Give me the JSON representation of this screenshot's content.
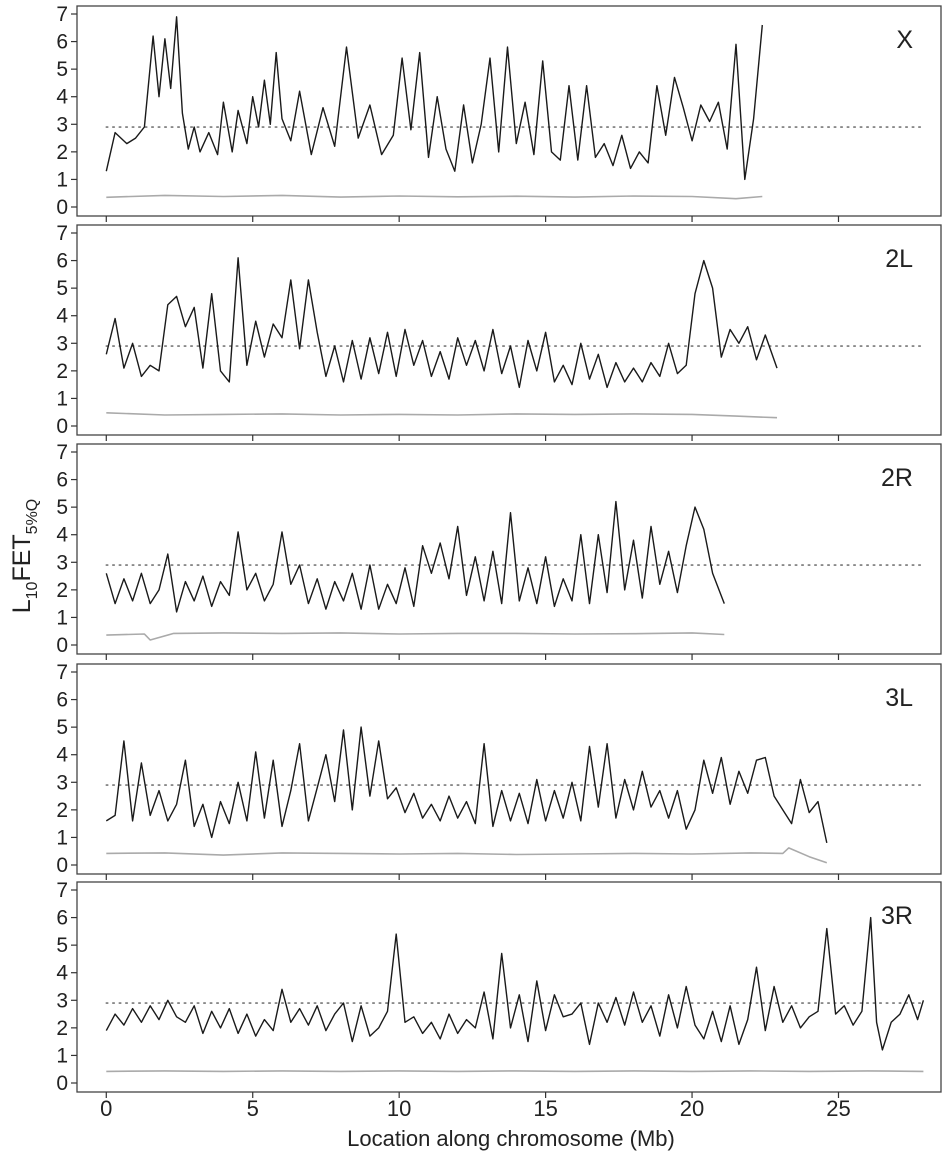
{
  "figure": {
    "ylabel_main": "L",
    "ylabel_sub1": "10",
    "ylabel_mid": "FET",
    "ylabel_sub2": "5%Q",
    "xlabel": "Location along chromosome (Mb)",
    "x_ticks": [
      "0",
      "5",
      "10",
      "15",
      "20",
      "25"
    ],
    "y_ticks": [
      "0",
      "1",
      "2",
      "3",
      "4",
      "5",
      "6",
      "7"
    ]
  },
  "colors": {
    "observed_line": "#1a1a1a",
    "null_line": "#aaaaaa",
    "threshold_line": "#777777",
    "panel_border": "#444444"
  },
  "chart_data": [
    {
      "type": "line",
      "panel": "X",
      "xlim": [
        -1,
        28.5
      ],
      "ylim": [
        0,
        7
      ],
      "threshold": 2.9,
      "x_max": 22.4,
      "series": [
        {
          "role": "observed",
          "x": [
            0.0,
            0.3,
            0.7,
            1.0,
            1.3,
            1.6,
            1.8,
            2.0,
            2.2,
            2.4,
            2.6,
            2.8,
            3.0,
            3.2,
            3.5,
            3.8,
            4.0,
            4.3,
            4.5,
            4.8,
            5.0,
            5.2,
            5.4,
            5.6,
            5.8,
            6.0,
            6.3,
            6.6,
            7.0,
            7.4,
            7.8,
            8.2,
            8.6,
            9.0,
            9.4,
            9.8,
            10.1,
            10.4,
            10.7,
            11.0,
            11.3,
            11.6,
            11.9,
            12.2,
            12.5,
            12.8,
            13.1,
            13.4,
            13.7,
            14.0,
            14.3,
            14.6,
            14.9,
            15.2,
            15.5,
            15.8,
            16.1,
            16.4,
            16.7,
            17.0,
            17.3,
            17.6,
            17.9,
            18.2,
            18.5,
            18.8,
            19.1,
            19.4,
            19.7,
            20.0,
            20.3,
            20.6,
            20.9,
            21.2,
            21.5,
            21.8,
            22.1,
            22.4
          ],
          "values": [
            1.3,
            2.7,
            2.3,
            2.5,
            2.9,
            6.2,
            4.0,
            6.1,
            4.3,
            6.9,
            3.4,
            2.1,
            2.9,
            2.0,
            2.7,
            1.9,
            3.8,
            2.0,
            3.5,
            2.3,
            4.0,
            2.9,
            4.6,
            3.0,
            5.6,
            3.2,
            2.4,
            4.2,
            1.9,
            3.6,
            2.2,
            5.8,
            2.5,
            3.7,
            1.9,
            2.6,
            5.4,
            2.8,
            5.6,
            1.8,
            4.0,
            2.1,
            1.3,
            3.7,
            1.6,
            3.0,
            5.4,
            2.0,
            5.8,
            2.3,
            3.8,
            1.9,
            5.3,
            2.0,
            1.7,
            4.4,
            1.7,
            4.4,
            1.8,
            2.3,
            1.5,
            2.6,
            1.4,
            2.0,
            1.6,
            4.4,
            2.6,
            4.7,
            3.6,
            2.4,
            3.7,
            3.1,
            3.8,
            2.1,
            5.9,
            1.0,
            3.2,
            6.6
          ]
        },
        {
          "role": "null",
          "x": [
            0.0,
            2.0,
            4.0,
            6.0,
            8.0,
            10.0,
            12.0,
            14.0,
            16.0,
            18.0,
            20.0,
            21.5,
            22.4
          ],
          "values": [
            0.35,
            0.42,
            0.38,
            0.42,
            0.36,
            0.4,
            0.37,
            0.39,
            0.36,
            0.4,
            0.38,
            0.3,
            0.38
          ]
        }
      ]
    },
    {
      "type": "line",
      "panel": "2L",
      "xlim": [
        -1,
        28.5
      ],
      "ylim": [
        0,
        7
      ],
      "threshold": 2.9,
      "x_max": 22.9,
      "series": [
        {
          "role": "observed",
          "x": [
            0.0,
            0.3,
            0.6,
            0.9,
            1.2,
            1.5,
            1.8,
            2.1,
            2.4,
            2.7,
            3.0,
            3.3,
            3.6,
            3.9,
            4.2,
            4.5,
            4.8,
            5.1,
            5.4,
            5.7,
            6.0,
            6.3,
            6.6,
            6.9,
            7.2,
            7.5,
            7.8,
            8.1,
            8.4,
            8.7,
            9.0,
            9.3,
            9.6,
            9.9,
            10.2,
            10.5,
            10.8,
            11.1,
            11.4,
            11.7,
            12.0,
            12.3,
            12.6,
            12.9,
            13.2,
            13.5,
            13.8,
            14.1,
            14.4,
            14.7,
            15.0,
            15.3,
            15.6,
            15.9,
            16.2,
            16.5,
            16.8,
            17.1,
            17.4,
            17.7,
            18.0,
            18.3,
            18.6,
            18.9,
            19.2,
            19.5,
            19.8,
            20.1,
            20.4,
            20.7,
            21.0,
            21.3,
            21.6,
            21.9,
            22.2,
            22.5,
            22.9
          ],
          "values": [
            2.6,
            3.9,
            2.1,
            3.0,
            1.8,
            2.2,
            2.0,
            4.4,
            4.7,
            3.6,
            4.3,
            2.1,
            4.8,
            2.0,
            1.6,
            6.1,
            2.2,
            3.8,
            2.5,
            3.7,
            3.2,
            5.3,
            2.8,
            5.3,
            3.4,
            1.8,
            2.9,
            1.6,
            3.1,
            1.7,
            3.2,
            1.9,
            3.4,
            1.8,
            3.5,
            2.2,
            3.1,
            1.8,
            2.7,
            1.7,
            3.2,
            2.2,
            3.1,
            2.0,
            3.5,
            1.9,
            2.9,
            1.4,
            3.1,
            2.0,
            3.4,
            1.6,
            2.2,
            1.5,
            3.0,
            1.7,
            2.6,
            1.4,
            2.3,
            1.6,
            2.1,
            1.6,
            2.3,
            1.8,
            3.0,
            1.9,
            2.2,
            4.8,
            6.0,
            5.0,
            2.5,
            3.5,
            3.0,
            3.6,
            2.4,
            3.3,
            2.1
          ]
        },
        {
          "role": "null",
          "x": [
            0.0,
            2.0,
            4.0,
            6.0,
            8.0,
            10.0,
            12.0,
            14.0,
            16.0,
            18.0,
            20.0,
            21.5,
            22.9
          ],
          "values": [
            0.48,
            0.4,
            0.42,
            0.44,
            0.4,
            0.42,
            0.4,
            0.44,
            0.42,
            0.44,
            0.42,
            0.36,
            0.3
          ]
        }
      ]
    },
    {
      "type": "line",
      "panel": "2R",
      "xlim": [
        -1,
        28.5
      ],
      "ylim": [
        0,
        7
      ],
      "threshold": 2.9,
      "x_max": 21.1,
      "series": [
        {
          "role": "observed",
          "x": [
            0.0,
            0.3,
            0.6,
            0.9,
            1.2,
            1.5,
            1.8,
            2.1,
            2.4,
            2.7,
            3.0,
            3.3,
            3.6,
            3.9,
            4.2,
            4.5,
            4.8,
            5.1,
            5.4,
            5.7,
            6.0,
            6.3,
            6.6,
            6.9,
            7.2,
            7.5,
            7.8,
            8.1,
            8.4,
            8.7,
            9.0,
            9.3,
            9.6,
            9.9,
            10.2,
            10.5,
            10.8,
            11.1,
            11.4,
            11.7,
            12.0,
            12.3,
            12.6,
            12.9,
            13.2,
            13.5,
            13.8,
            14.1,
            14.4,
            14.7,
            15.0,
            15.3,
            15.6,
            15.9,
            16.2,
            16.5,
            16.8,
            17.1,
            17.4,
            17.7,
            18.0,
            18.3,
            18.6,
            18.9,
            19.2,
            19.5,
            19.8,
            20.1,
            20.4,
            20.7,
            21.1
          ],
          "values": [
            2.6,
            1.5,
            2.4,
            1.6,
            2.6,
            1.5,
            2.0,
            3.3,
            1.2,
            2.3,
            1.6,
            2.5,
            1.4,
            2.3,
            1.8,
            4.1,
            2.0,
            2.6,
            1.6,
            2.2,
            4.1,
            2.2,
            2.9,
            1.5,
            2.4,
            1.3,
            2.3,
            1.6,
            2.6,
            1.3,
            2.9,
            1.3,
            2.2,
            1.5,
            2.8,
            1.4,
            3.6,
            2.6,
            3.7,
            2.4,
            4.3,
            1.8,
            3.2,
            1.6,
            3.4,
            1.5,
            4.8,
            1.6,
            2.8,
            1.5,
            3.2,
            1.4,
            2.4,
            1.6,
            4.0,
            1.5,
            4.0,
            1.9,
            5.2,
            2.0,
            3.8,
            1.7,
            4.3,
            2.2,
            3.4,
            1.9,
            3.6,
            5.0,
            4.2,
            2.6,
            1.5
          ]
        },
        {
          "role": "null",
          "x": [
            0.0,
            1.3,
            1.5,
            2.3,
            4.0,
            6.0,
            8.0,
            10.0,
            12.0,
            14.0,
            16.0,
            18.0,
            20.0,
            21.1
          ],
          "values": [
            0.36,
            0.4,
            0.18,
            0.42,
            0.44,
            0.42,
            0.44,
            0.4,
            0.42,
            0.42,
            0.4,
            0.41,
            0.44,
            0.38
          ]
        }
      ]
    },
    {
      "type": "line",
      "panel": "3L",
      "xlim": [
        -1,
        28.5
      ],
      "ylim": [
        0,
        7
      ],
      "threshold": 2.9,
      "x_max": 24.6,
      "series": [
        {
          "role": "observed",
          "x": [
            0.0,
            0.3,
            0.6,
            0.9,
            1.2,
            1.5,
            1.8,
            2.1,
            2.4,
            2.7,
            3.0,
            3.3,
            3.6,
            3.9,
            4.2,
            4.5,
            4.8,
            5.1,
            5.4,
            5.7,
            6.0,
            6.3,
            6.6,
            6.9,
            7.2,
            7.5,
            7.8,
            8.1,
            8.4,
            8.7,
            9.0,
            9.3,
            9.6,
            9.9,
            10.2,
            10.5,
            10.8,
            11.1,
            11.4,
            11.7,
            12.0,
            12.3,
            12.6,
            12.9,
            13.2,
            13.5,
            13.8,
            14.1,
            14.4,
            14.7,
            15.0,
            15.3,
            15.6,
            15.9,
            16.2,
            16.5,
            16.8,
            17.1,
            17.4,
            17.7,
            18.0,
            18.3,
            18.6,
            18.9,
            19.2,
            19.5,
            19.8,
            20.1,
            20.4,
            20.7,
            21.0,
            21.3,
            21.6,
            21.9,
            22.2,
            22.5,
            22.8,
            23.1,
            23.4,
            23.7,
            24.0,
            24.3,
            24.6
          ],
          "values": [
            1.6,
            1.8,
            4.5,
            1.6,
            3.7,
            1.8,
            2.7,
            1.6,
            2.2,
            3.8,
            1.4,
            2.2,
            1.0,
            2.3,
            1.5,
            3.0,
            1.6,
            4.1,
            1.7,
            3.8,
            1.4,
            2.7,
            4.4,
            1.6,
            2.8,
            4.0,
            2.3,
            4.9,
            2.0,
            5.0,
            2.5,
            4.5,
            2.4,
            2.8,
            1.9,
            2.6,
            1.7,
            2.2,
            1.6,
            2.5,
            1.7,
            2.3,
            1.5,
            4.4,
            1.4,
            2.7,
            1.6,
            2.6,
            1.5,
            3.1,
            1.6,
            2.7,
            1.7,
            3.0,
            1.6,
            4.3,
            2.1,
            4.4,
            1.7,
            3.1,
            2.0,
            3.4,
            2.1,
            2.7,
            1.7,
            2.7,
            1.3,
            2.0,
            3.8,
            2.6,
            3.9,
            2.2,
            3.4,
            2.6,
            3.8,
            3.9,
            2.5,
            2.0,
            1.5,
            3.1,
            1.9,
            2.3,
            0.8
          ]
        },
        {
          "role": "null",
          "x": [
            0.0,
            2.0,
            4.0,
            6.0,
            8.0,
            10.0,
            12.0,
            14.0,
            16.0,
            18.0,
            20.0,
            22.0,
            23.1,
            23.3,
            24.0,
            24.6
          ],
          "values": [
            0.42,
            0.44,
            0.36,
            0.44,
            0.42,
            0.4,
            0.42,
            0.38,
            0.4,
            0.42,
            0.4,
            0.44,
            0.42,
            0.62,
            0.3,
            0.08
          ]
        }
      ]
    },
    {
      "type": "line",
      "panel": "3R",
      "xlim": [
        -1,
        28.5
      ],
      "ylim": [
        0,
        7
      ],
      "threshold": 2.9,
      "x_max": 27.9,
      "series": [
        {
          "role": "observed",
          "x": [
            0.0,
            0.3,
            0.6,
            0.9,
            1.2,
            1.5,
            1.8,
            2.1,
            2.4,
            2.7,
            3.0,
            3.3,
            3.6,
            3.9,
            4.2,
            4.5,
            4.8,
            5.1,
            5.4,
            5.7,
            6.0,
            6.3,
            6.6,
            6.9,
            7.2,
            7.5,
            7.8,
            8.1,
            8.4,
            8.7,
            9.0,
            9.3,
            9.6,
            9.9,
            10.2,
            10.5,
            10.8,
            11.1,
            11.4,
            11.7,
            12.0,
            12.3,
            12.6,
            12.9,
            13.2,
            13.5,
            13.8,
            14.1,
            14.4,
            14.7,
            15.0,
            15.3,
            15.6,
            15.9,
            16.2,
            16.5,
            16.8,
            17.1,
            17.4,
            17.7,
            18.0,
            18.3,
            18.6,
            18.9,
            19.2,
            19.5,
            19.8,
            20.1,
            20.4,
            20.7,
            21.0,
            21.3,
            21.6,
            21.9,
            22.2,
            22.5,
            22.8,
            23.1,
            23.4,
            23.7,
            24.0,
            24.3,
            24.6,
            24.9,
            25.2,
            25.5,
            25.8,
            26.1,
            26.3,
            26.5,
            26.8,
            27.1,
            27.4,
            27.7,
            27.9
          ],
          "values": [
            1.9,
            2.5,
            2.1,
            2.7,
            2.2,
            2.8,
            2.3,
            3.0,
            2.4,
            2.2,
            2.8,
            1.8,
            2.6,
            2.0,
            2.7,
            1.8,
            2.5,
            1.7,
            2.3,
            1.9,
            3.4,
            2.2,
            2.7,
            2.1,
            2.8,
            1.9,
            2.5,
            2.9,
            1.5,
            2.8,
            1.7,
            2.0,
            2.6,
            5.4,
            2.2,
            2.4,
            1.8,
            2.2,
            1.6,
            2.5,
            1.8,
            2.3,
            2.0,
            3.3,
            1.6,
            4.7,
            2.0,
            3.2,
            1.5,
            3.7,
            1.9,
            3.2,
            2.4,
            2.5,
            2.9,
            1.4,
            2.9,
            2.2,
            3.1,
            2.1,
            3.3,
            2.2,
            2.8,
            1.7,
            3.2,
            2.0,
            3.5,
            2.1,
            1.6,
            2.6,
            1.5,
            2.8,
            1.4,
            2.3,
            4.2,
            1.9,
            3.5,
            2.2,
            2.8,
            2.0,
            2.4,
            2.6,
            5.6,
            2.5,
            2.8,
            2.1,
            2.6,
            6.0,
            2.2,
            1.2,
            2.2,
            2.5,
            3.2,
            2.3,
            3.0
          ]
        },
        {
          "role": "null",
          "x": [
            0.0,
            2.0,
            4.0,
            6.0,
            8.0,
            10.0,
            12.0,
            14.0,
            16.0,
            18.0,
            20.0,
            22.0,
            24.0,
            26.0,
            27.9
          ],
          "values": [
            0.42,
            0.44,
            0.42,
            0.44,
            0.42,
            0.44,
            0.42,
            0.44,
            0.42,
            0.44,
            0.42,
            0.44,
            0.42,
            0.44,
            0.42
          ]
        }
      ]
    }
  ]
}
